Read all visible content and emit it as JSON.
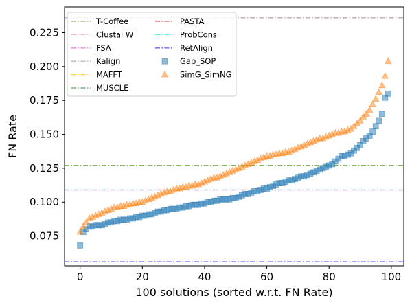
{
  "chart_data": {
    "type": "scatter",
    "title": "",
    "xlabel": "100 solutions (sorted w.r.t. FN Rate)",
    "ylabel": "FN Rate",
    "xlim": [
      -5,
      104
    ],
    "ylim": [
      0.053,
      0.244
    ],
    "xticks": [
      0,
      20,
      40,
      60,
      80,
      100
    ],
    "yticks": [
      0.075,
      0.1,
      0.125,
      0.15,
      0.175,
      0.2,
      0.225
    ],
    "ytick_labels": [
      "0.075",
      "0.100",
      "0.125",
      "0.150",
      "0.175",
      "0.200",
      "0.225"
    ],
    "grid": false,
    "legend_position": "top-left",
    "reference_lines": [
      {
        "name": "T-Coffee",
        "value": 0.127,
        "color": "#9aab60"
      },
      {
        "name": "Clustal W",
        "value": 0.236,
        "color": "#ffb6d5"
      },
      {
        "name": "FSA",
        "value": 0.236,
        "color": "#ee88dd"
      },
      {
        "name": "Kalign",
        "value": 0.236,
        "color": "#b8b8b8"
      },
      {
        "name": "MAFFT",
        "value": 0.127,
        "color": "#ffd23f"
      },
      {
        "name": "MUSCLE",
        "value": 0.127,
        "color": "#5aa55a"
      },
      {
        "name": "PASTA",
        "value": 0.109,
        "color": "#e55a5a"
      },
      {
        "name": "ProbCons",
        "value": 0.109,
        "color": "#5ce6e6"
      },
      {
        "name": "RetAlign",
        "value": 0.056,
        "color": "#6666ee"
      }
    ],
    "series": [
      {
        "name": "Gap_SOP",
        "marker": "square",
        "color": "#1f77b4",
        "values": [
          0.068,
          0.078,
          0.08,
          0.082,
          0.082,
          0.083,
          0.083,
          0.083,
          0.084,
          0.085,
          0.085,
          0.086,
          0.086,
          0.087,
          0.087,
          0.087,
          0.088,
          0.088,
          0.089,
          0.089,
          0.09,
          0.09,
          0.091,
          0.091,
          0.092,
          0.093,
          0.093,
          0.094,
          0.094,
          0.095,
          0.095,
          0.095,
          0.096,
          0.096,
          0.097,
          0.097,
          0.098,
          0.098,
          0.098,
          0.099,
          0.099,
          0.1,
          0.1,
          0.101,
          0.101,
          0.102,
          0.102,
          0.102,
          0.102,
          0.103,
          0.103,
          0.104,
          0.105,
          0.106,
          0.106,
          0.107,
          0.108,
          0.108,
          0.109,
          0.11,
          0.11,
          0.111,
          0.112,
          0.113,
          0.114,
          0.114,
          0.115,
          0.116,
          0.116,
          0.117,
          0.118,
          0.119,
          0.119,
          0.12,
          0.121,
          0.122,
          0.123,
          0.124,
          0.125,
          0.126,
          0.127,
          0.128,
          0.13,
          0.132,
          0.134,
          0.134,
          0.135,
          0.136,
          0.138,
          0.14,
          0.142,
          0.145,
          0.147,
          0.149,
          0.152,
          0.156,
          0.16,
          0.165,
          0.177,
          0.18
        ]
      },
      {
        "name": "SimG_SimNG",
        "marker": "triangle",
        "color": "#ff7f0e",
        "values": [
          0.078,
          0.082,
          0.085,
          0.088,
          0.089,
          0.09,
          0.091,
          0.092,
          0.093,
          0.094,
          0.095,
          0.096,
          0.096,
          0.097,
          0.097,
          0.098,
          0.098,
          0.099,
          0.099,
          0.1,
          0.1,
          0.101,
          0.102,
          0.103,
          0.104,
          0.105,
          0.106,
          0.107,
          0.108,
          0.108,
          0.109,
          0.11,
          0.11,
          0.111,
          0.111,
          0.112,
          0.112,
          0.113,
          0.113,
          0.114,
          0.115,
          0.116,
          0.117,
          0.118,
          0.118,
          0.119,
          0.12,
          0.121,
          0.122,
          0.123,
          0.124,
          0.125,
          0.126,
          0.127,
          0.128,
          0.129,
          0.13,
          0.131,
          0.132,
          0.133,
          0.134,
          0.134,
          0.135,
          0.135,
          0.136,
          0.136,
          0.137,
          0.137,
          0.138,
          0.139,
          0.14,
          0.141,
          0.142,
          0.143,
          0.144,
          0.145,
          0.146,
          0.147,
          0.147,
          0.148,
          0.149,
          0.15,
          0.151,
          0.151,
          0.152,
          0.152,
          0.153,
          0.154,
          0.156,
          0.158,
          0.16,
          0.163,
          0.165,
          0.168,
          0.172,
          0.176,
          0.181,
          0.186,
          0.193,
          0.204
        ]
      }
    ]
  }
}
